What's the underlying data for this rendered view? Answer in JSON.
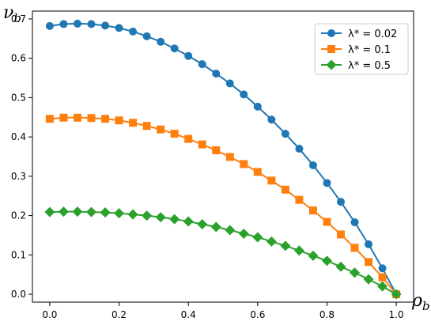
{
  "chart_data": {
    "type": "line",
    "xlabel": "ρ_b",
    "ylabel": "ν_b",
    "xlim": [
      -0.05,
      1.05
    ],
    "ylim": [
      -0.02,
      0.72
    ],
    "x_ticks": [
      0.0,
      0.2,
      0.4,
      0.6,
      0.8,
      1.0
    ],
    "x_tick_labels": [
      "0.0",
      "0.2",
      "0.4",
      "0.6",
      "0.8",
      "1.0"
    ],
    "y_ticks": [
      0.0,
      0.1,
      0.2,
      0.3,
      0.4,
      0.5,
      0.6,
      0.7
    ],
    "y_tick_labels": [
      "0.0",
      "0.1",
      "0.2",
      "0.3",
      "0.4",
      "0.5",
      "0.6",
      "0.7"
    ],
    "grid": false,
    "legend_position": "top-right",
    "x": [
      0.0,
      0.04,
      0.08,
      0.12,
      0.16,
      0.2,
      0.24,
      0.28,
      0.32,
      0.36,
      0.4,
      0.44,
      0.48,
      0.52,
      0.56,
      0.6,
      0.64,
      0.68,
      0.72,
      0.76,
      0.8,
      0.84,
      0.88,
      0.92,
      0.96,
      1.0
    ],
    "series": [
      {
        "name": "λ* = 0.02",
        "legend_label": "λ* = 0.02",
        "color": "#1f77b4",
        "marker": "circle",
        "values": [
          0.682,
          0.687,
          0.688,
          0.687,
          0.683,
          0.677,
          0.668,
          0.656,
          0.642,
          0.625,
          0.606,
          0.585,
          0.561,
          0.536,
          0.508,
          0.477,
          0.444,
          0.408,
          0.37,
          0.328,
          0.283,
          0.235,
          0.183,
          0.127,
          0.066,
          0.0
        ]
      },
      {
        "name": "λ* = 0.1",
        "legend_label": "λ* = 0.1",
        "color": "#ff7f0e",
        "marker": "square",
        "values": [
          0.446,
          0.449,
          0.449,
          0.448,
          0.446,
          0.442,
          0.436,
          0.428,
          0.419,
          0.408,
          0.395,
          0.381,
          0.366,
          0.349,
          0.331,
          0.311,
          0.289,
          0.266,
          0.24,
          0.213,
          0.184,
          0.152,
          0.118,
          0.082,
          0.043,
          0.0
        ]
      },
      {
        "name": "λ* = 0.5",
        "legend_label": "λ* = 0.5",
        "color": "#2ca02c",
        "marker": "diamond",
        "values": [
          0.209,
          0.21,
          0.21,
          0.209,
          0.208,
          0.206,
          0.203,
          0.2,
          0.196,
          0.191,
          0.185,
          0.178,
          0.171,
          0.163,
          0.154,
          0.145,
          0.134,
          0.123,
          0.111,
          0.098,
          0.085,
          0.07,
          0.055,
          0.038,
          0.02,
          0.0
        ]
      }
    ]
  }
}
